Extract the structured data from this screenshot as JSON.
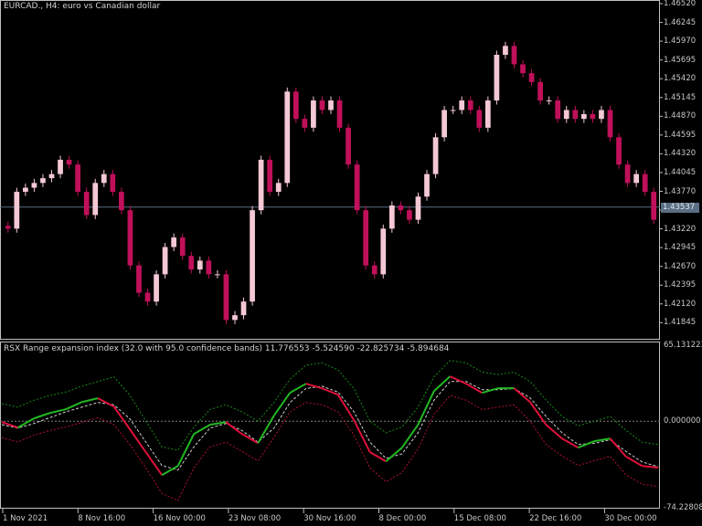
{
  "header": {
    "title": "EURCAD., H4:  euro vs Canadian dollar"
  },
  "indicator": {
    "label": "RSX Range expansion index (32.0 with 95.0 confidence bands) 11.776553 -5.524590 -22.825734 -5.894684",
    "scale_top": "65.131223",
    "scale_zero": "0.000000",
    "scale_bottom": "-74.228087"
  },
  "price_axis": {
    "labels": [
      "1.46520",
      "1.46245",
      "1.45970",
      "1.45695",
      "1.45420",
      "1.45145",
      "1.44870",
      "1.44595",
      "1.44320",
      "1.44045",
      "1.43770",
      "1.43220",
      "1.42945",
      "1.42670",
      "1.42395",
      "1.42120",
      "1.41845"
    ],
    "current_price": "1.43537",
    "max": 1.4652,
    "min": 1.41845
  },
  "time_axis": {
    "labels": [
      "1 Nov 2021",
      "8 Nov 16:00",
      "16 Nov 00:00",
      "23 Nov 08:00",
      "30 Nov 16:00",
      "8 Dec 00:00",
      "15 Dec 08:00",
      "22 Dec 16:00",
      "30 Dec 00:00"
    ]
  },
  "colors": {
    "bull": "#f4c8d4",
    "bear": "#c0105a",
    "rising": "#22b822",
    "falling": "#e0103a",
    "upper_band": "#1a8a1a",
    "lower_band": "#b01030",
    "signal": "#d0d0d0",
    "current_line": "#5a6e84"
  },
  "chart_data": {
    "type": "candlestick",
    "closes": [
      1.4322,
      1.4376,
      1.4382,
      1.4389,
      1.4396,
      1.4402,
      1.4423,
      1.4416,
      1.4376,
      1.4342,
      1.4389,
      1.4402,
      1.4376,
      1.4349,
      1.4268,
      1.4228,
      1.4215,
      1.4255,
      1.4295,
      1.4309,
      1.4282,
      1.4262,
      1.4275,
      1.4255,
      1.4255,
      1.4188,
      1.4195,
      1.4215,
      1.4349,
      1.4423,
      1.4376,
      1.4389,
      1.4523,
      1.4483,
      1.447,
      1.451,
      1.4496,
      1.451,
      1.447,
      1.4416,
      1.4349,
      1.4268,
      1.4255,
      1.4322,
      1.4356,
      1.4349,
      1.4335,
      1.4369,
      1.4402,
      1.4456,
      1.4496,
      1.4496,
      1.451,
      1.4496,
      1.447,
      1.451,
      1.4577,
      1.459,
      1.4563,
      1.455,
      1.4537,
      1.451,
      1.451,
      1.4483,
      1.4496,
      1.4483,
      1.449,
      1.4483,
      1.4496,
      1.4456,
      1.4416,
      1.4389,
      1.4402,
      1.4376,
      1.4335
    ],
    "rsx": [
      -0.8,
      -5.5,
      2.3,
      7.0,
      10.2,
      16.4,
      19.6,
      12.5,
      -7.0,
      -26.6,
      -46.2,
      -38.4,
      -11.0,
      -3.1,
      -0.8,
      -11.0,
      -18.8,
      4.7,
      24.3,
      32.1,
      28.2,
      22.7,
      0.8,
      -26.6,
      -34.5,
      -22.7,
      -3.1,
      25.8,
      38.4,
      32.1,
      24.3,
      28.2,
      28.2,
      16.4,
      -3.1,
      -14.9,
      -22.7,
      -17.2,
      -14.9,
      -30.5,
      -38.4,
      -39.9
    ],
    "signal": [
      -3,
      -6,
      -2,
      3,
      8,
      12,
      16,
      14,
      2,
      -18,
      -38,
      -42,
      -22,
      -6,
      -2,
      -8,
      -18,
      -6,
      16,
      28,
      30,
      25,
      8,
      -18,
      -32,
      -28,
      -10,
      18,
      34,
      34,
      27,
      27,
      28,
      20,
      4,
      -10,
      -20,
      -19,
      -16,
      -26,
      -35,
      -39
    ],
    "upper_band": [
      15,
      12,
      18,
      22,
      25,
      30,
      34,
      38,
      22,
      0,
      -22,
      -25,
      -5,
      10,
      14,
      8,
      0,
      16,
      36,
      48,
      50,
      44,
      28,
      0,
      -10,
      -5,
      12,
      38,
      52,
      50,
      42,
      40,
      42,
      34,
      18,
      4,
      -4,
      0,
      4,
      -8,
      -18,
      -20
    ],
    "lower_band": [
      -14,
      -18,
      -12,
      -8,
      -5,
      -1,
      3,
      -3,
      -20,
      -40,
      -62,
      -68,
      -40,
      -22,
      -18,
      -26,
      -34,
      -14,
      8,
      16,
      14,
      8,
      -12,
      -40,
      -52,
      -44,
      -24,
      6,
      22,
      18,
      10,
      12,
      14,
      0,
      -20,
      -30,
      -38,
      -34,
      -30,
      -46,
      -54,
      -56
    ],
    "ylim_price": [
      1.41845,
      1.4652
    ],
    "ylim_indicator": [
      -74.228087,
      65.131223
    ]
  }
}
